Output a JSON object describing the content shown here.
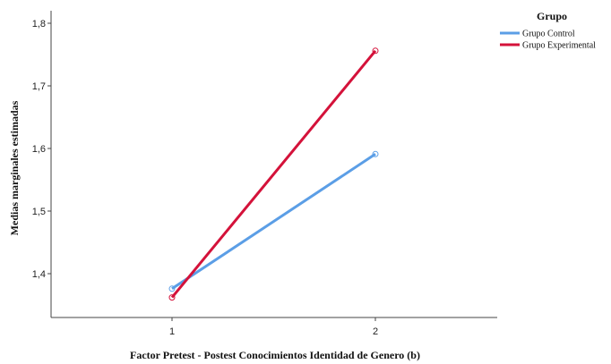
{
  "chart_data": {
    "type": "line",
    "title": "",
    "xlabel": "Factor Pretest - Postest Conocimientos Identidad de Genero (b)",
    "ylabel": "Medias marginales estimadas",
    "categories": [
      "1",
      "2"
    ],
    "ylim": [
      1.33,
      1.82
    ],
    "yticks": [
      1.4,
      1.5,
      1.6,
      1.7,
      1.8
    ],
    "ytick_labels": [
      "1,4",
      "1,5",
      "1,6",
      "1,7",
      "1,8"
    ],
    "grid": false,
    "legend": {
      "title": "Grupo",
      "placement": "top-right"
    },
    "series": [
      {
        "name": "Grupo Control",
        "values": [
          1.376,
          1.591
        ],
        "color": "#5b9ee6"
      },
      {
        "name": "Grupo Experimental",
        "values": [
          1.362,
          1.756
        ],
        "color": "#d4123a"
      }
    ]
  }
}
